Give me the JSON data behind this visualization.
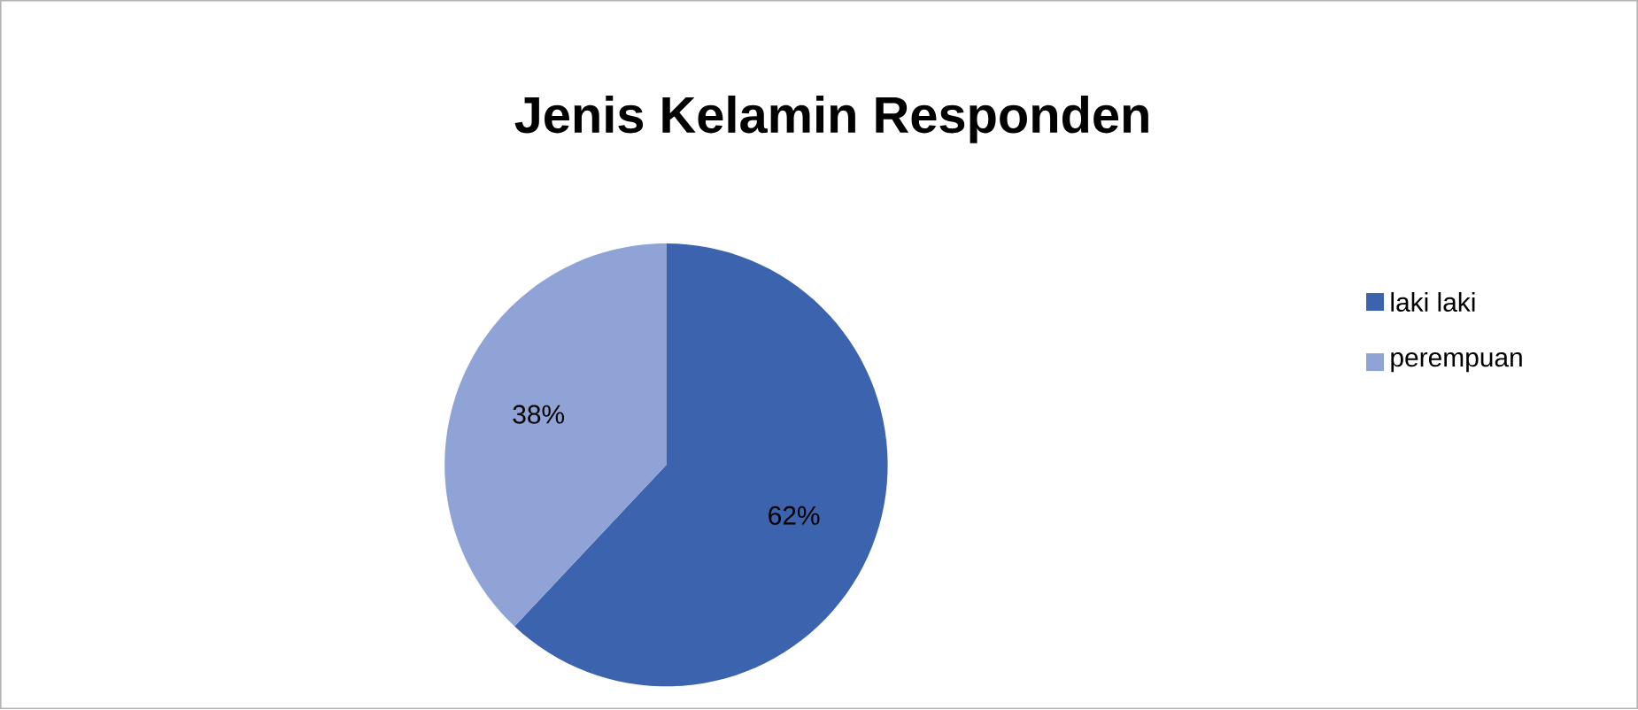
{
  "chart_data": {
    "type": "pie",
    "title": "Jenis Kelamin Responden",
    "categories": [
      "laki laki",
      "perempuan"
    ],
    "values": [
      62,
      38
    ],
    "colors": [
      "#3c64ae",
      "#8fa3d6"
    ],
    "value_labels": [
      "62%",
      "38%"
    ],
    "legend": "right"
  }
}
